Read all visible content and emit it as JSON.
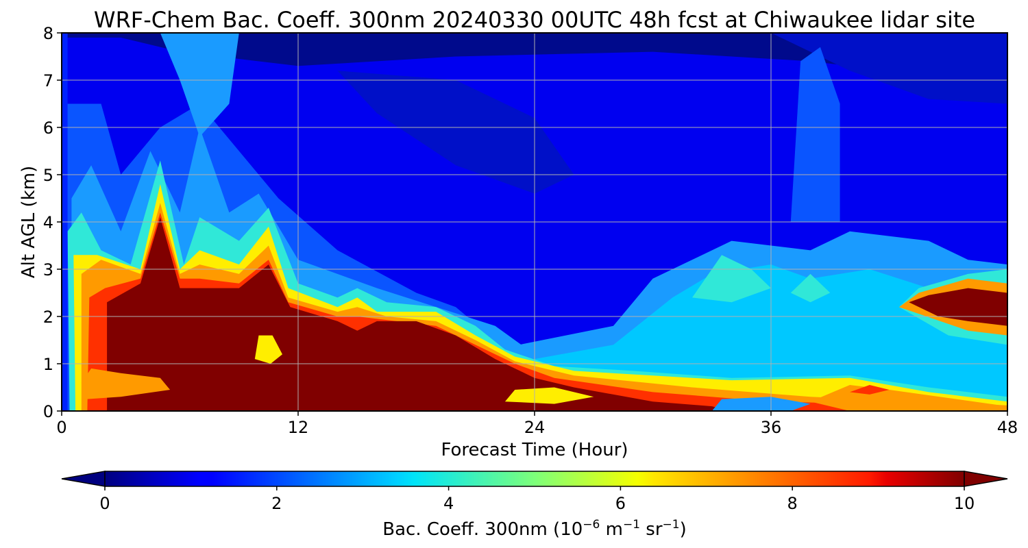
{
  "chart_data": {
    "type": "heatmap",
    "title": "WRF-Chem Bac. Coeff. 300nm  20240330 00UTC 48h fcst at Chiwaukee lidar site",
    "xlabel": "Forecast Time (Hour)",
    "ylabel": "Alt AGL (km)",
    "xlim": [
      0,
      48
    ],
    "ylim": [
      0,
      8
    ],
    "x_ticks": [
      "0",
      "12",
      "24",
      "36",
      "48"
    ],
    "y_ticks": [
      "0",
      "1",
      "2",
      "3",
      "4",
      "5",
      "6",
      "7",
      "8"
    ],
    "grid": true,
    "colormap": "jet",
    "colorbar": {
      "orientation": "horizontal",
      "range": [
        0,
        10
      ],
      "extend": "both",
      "ticks": [
        "0",
        "2",
        "4",
        "6",
        "8",
        "10"
      ],
      "label_main": "Bac. Coeff. 300nm  (10",
      "label_exp1": "−6",
      "label_mid": " m",
      "label_exp2": "−1",
      "label_mid2": " sr",
      "label_exp3": "−1",
      "label_end": ")"
    },
    "field_description": {
      "background_upper_value": 0.5,
      "values_units": "10^-6 m^-1 sr^-1",
      "features": [
        {
          "name": "surface-aerosol-plume",
          "time_range_h": [
            1,
            24
          ],
          "alt_range_km": [
            0,
            2.8
          ],
          "value": 10
        },
        {
          "name": "surface-tail",
          "time_range_h": [
            24,
            48
          ],
          "alt_range_km": [
            0,
            0.8
          ],
          "value": 7
        },
        {
          "name": "elevated-layer",
          "time_range_h": [
            43,
            48
          ],
          "alt_range_km": [
            1.8,
            2.5
          ],
          "value": 10
        },
        {
          "name": "midlevel-haze",
          "time_range_h": [
            30,
            48
          ],
          "alt_range_km": [
            0.8,
            3.5
          ],
          "value": 3.5
        }
      ]
    }
  }
}
